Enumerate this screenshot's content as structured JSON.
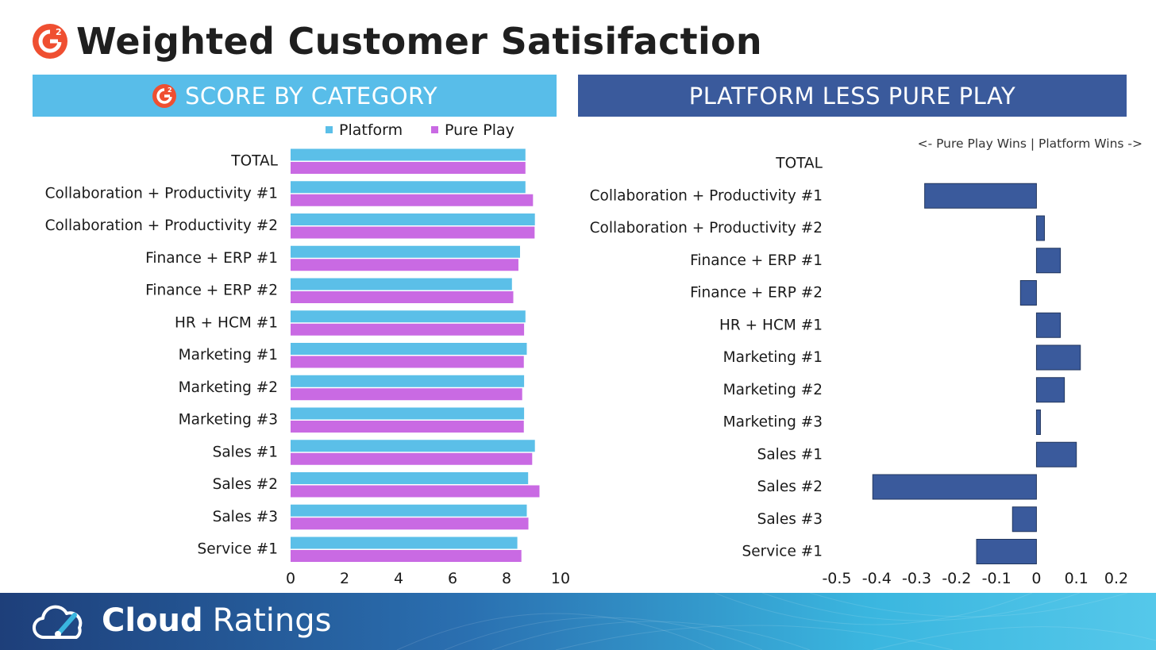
{
  "title": "Weighted Customer Satisifaction",
  "left_panel": {
    "header": "SCORE BY CATEGORY"
  },
  "right_panel": {
    "header": "PLATFORM LESS PURE PLAY",
    "note": "<- Pure Play Wins | Platform Wins ->"
  },
  "colors": {
    "platform": "#5bbfe8",
    "pure_play": "#c96ae3",
    "diff": "#3a5a9c",
    "left_header": "#58bde9",
    "right_header": "#3a5a9c",
    "g2": "#ef4f31"
  },
  "chart_data": [
    {
      "type": "bar",
      "orientation": "horizontal",
      "title": "SCORE BY CATEGORY",
      "categories": [
        "TOTAL",
        "Collaboration + Productivity #1",
        "Collaboration + Productivity #2",
        "Finance + ERP #1",
        "Finance + ERP #2",
        "HR + HCM #1",
        "Marketing #1",
        "Marketing #2",
        "Marketing #3",
        "Sales #1",
        "Sales #2",
        "Sales #3",
        "Service #1"
      ],
      "series": [
        {
          "name": "Platform",
          "values": [
            8.7,
            8.7,
            9.05,
            8.5,
            8.2,
            8.7,
            8.75,
            8.65,
            8.65,
            9.05,
            8.8,
            8.75,
            8.4
          ]
        },
        {
          "name": "Pure Play",
          "values": [
            8.7,
            8.98,
            9.04,
            8.44,
            8.25,
            8.65,
            8.64,
            8.58,
            8.64,
            8.95,
            9.22,
            8.81,
            8.55
          ]
        }
      ],
      "xlim": [
        0,
        10
      ],
      "xticks": [
        "0",
        "2",
        "4",
        "6",
        "8",
        "10"
      ],
      "legend": "top"
    },
    {
      "type": "bar",
      "orientation": "horizontal",
      "title": "PLATFORM LESS PURE PLAY",
      "categories": [
        "TOTAL",
        "Collaboration + Productivity #1",
        "Collaboration + Productivity #2",
        "Finance + ERP #1",
        "Finance + ERP #2",
        "HR + HCM #1",
        "Marketing #1",
        "Marketing #2",
        "Marketing #3",
        "Sales #1",
        "Sales #2",
        "Sales #3",
        "Service #1"
      ],
      "values": [
        0,
        -0.28,
        0.02,
        0.06,
        -0.04,
        0.06,
        0.11,
        0.07,
        0.01,
        0.1,
        -0.41,
        -0.06,
        -0.15
      ],
      "xlim": [
        -0.5,
        0.2
      ],
      "xticks": [
        "-0.5",
        "-0.4",
        "-0.3",
        "-0.2",
        "-0.1",
        "0",
        "0.1",
        "0.2"
      ]
    }
  ],
  "footer": {
    "brand_bold": "Cloud",
    "brand_light": "Ratings"
  }
}
